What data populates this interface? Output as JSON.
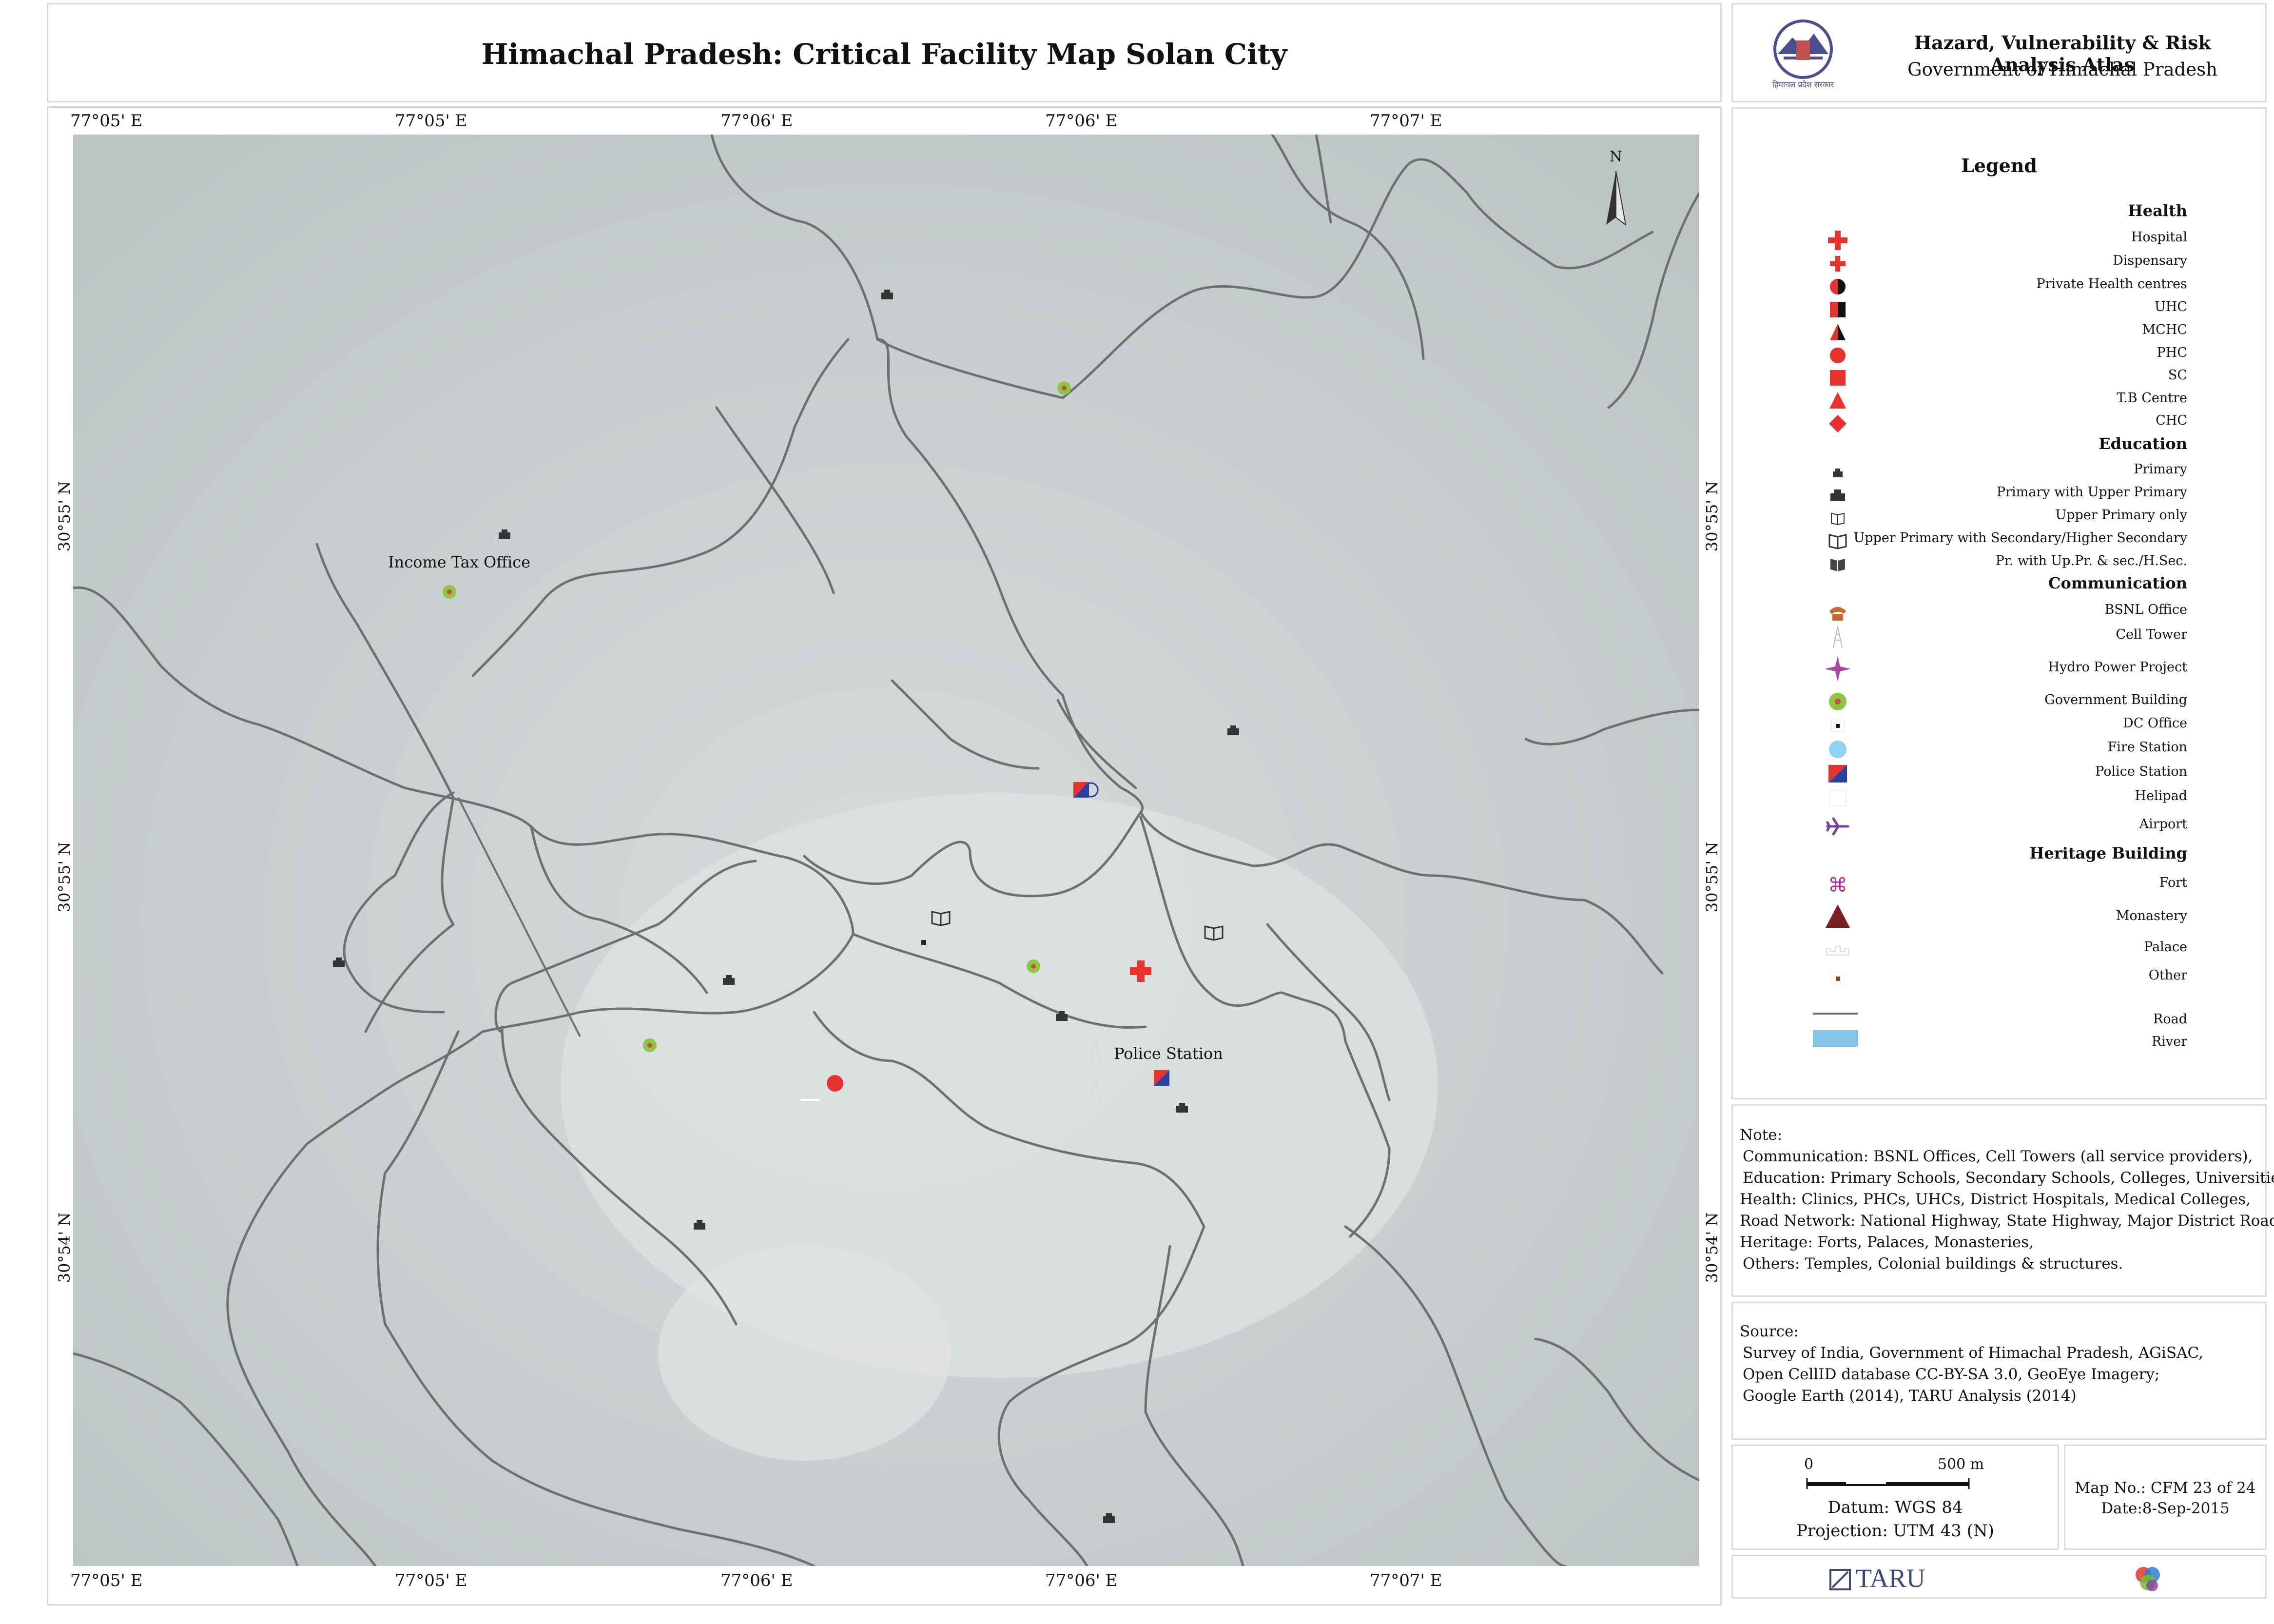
{
  "title": "Himachal Pradesh: Critical Facility Map Solan City",
  "atlas": {
    "title": "Hazard, Vulnerability & Risk Analysis Atlas",
    "subtitle": "Government of Himachal Pradesh",
    "emblem_caption": "हिमाचल प्रदेश सरकार"
  },
  "coords": {
    "top": [
      "77°05' E",
      "77°05' E",
      "77°06' E",
      "77°06' E",
      "77°07' E"
    ],
    "bottom": [
      "77°05' E",
      "77°05' E",
      "77°06' E",
      "77°06' E",
      "77°07' E"
    ],
    "left": [
      "30°55' N",
      "30°55' N",
      "30°54' N"
    ],
    "right": [
      "30°55' N",
      "30°55' N",
      "30°54' N"
    ]
  },
  "north_arrow": "N",
  "map_labels": {
    "income_tax": "Income Tax Office",
    "police_station": "Police Station"
  },
  "legend": {
    "title": "Legend",
    "health": {
      "heading": "Health",
      "items": [
        "Hospital",
        "Dispensary",
        "Private Health centres",
        "UHC",
        "MCHC",
        "PHC",
        "SC",
        "T.B Centre",
        "CHC"
      ]
    },
    "education": {
      "heading": "Education",
      "items": [
        "Primary",
        "Primary with Upper Primary",
        "Upper Primary only",
        "Upper Primary with Secondary/Higher Secondary",
        "Pr. with Up.Pr. & sec./H.Sec."
      ]
    },
    "communication": {
      "heading": "Communication",
      "items": [
        "BSNL Office",
        "Cell Tower",
        "Hydro Power Project",
        "Government Building",
        "DC Office",
        "Fire Station",
        "Police Station",
        "Helipad",
        "Airport"
      ]
    },
    "heritage": {
      "heading": "Heritage Building",
      "items": [
        "Fort",
        "Monastery",
        "Palace",
        "Other"
      ]
    },
    "road": "Road",
    "river": "River"
  },
  "note": {
    "heading": "Note:",
    "lines": [
      "Communication: BSNL Offices, Cell Towers (all service providers),",
      "Education:  Primary Schools, Secondary Schools, Colleges, Universities,",
      "Health: Clinics, PHCs, UHCs, District Hospitals, Medical Colleges,",
      "Road Network: National Highway, State Highway, Major District Road,",
      "Heritage: Forts, Palaces, Monasteries,",
      "Others: Temples, Colonial buildings & structures."
    ]
  },
  "source": {
    "heading": "Source:",
    "lines": [
      "Survey of India, Government of Himachal Pradesh, AGiSAC,",
      "Open CellID database CC-BY-SA 3.0, GeoEye Imagery;",
      "Google Earth (2014), TARU Analysis (2014)"
    ]
  },
  "scale": {
    "zero": "0",
    "length": "500 m",
    "datum": "Datum: WGS 84",
    "projection": "Projection: UTM 43 (N)"
  },
  "map_info": {
    "map_no": "Map No.: CFM 23 of 24",
    "date": "Date:8-Sep-2015"
  },
  "footer": {
    "brand": "TARU"
  },
  "colors": {
    "map_bg": "#c7cdcf",
    "road": "#6e7072",
    "health_red": "#e8322e",
    "police_blue": "#2b3f9e",
    "gov_green": "#8ec63f",
    "fire_blue": "#8fd3f2",
    "river": "#86c5e8",
    "heritage_pink": "#b8319a",
    "monastery": "#7a2020",
    "bsnl_orange": "#c8682a",
    "airport_purple": "#7a3fa0"
  }
}
